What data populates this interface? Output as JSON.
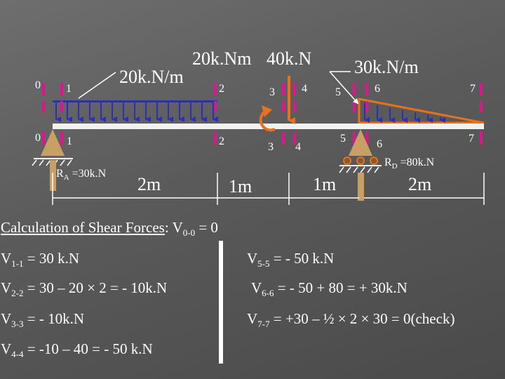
{
  "diagram": {
    "load_20knm": "20k.Nm",
    "load_40kn": "40k.N",
    "load_30knm": "30k.N/m",
    "load_20knperm": "20k.N/m",
    "section_top": [
      "0",
      "1",
      "2",
      "3",
      "4",
      "5",
      "6",
      "7"
    ],
    "section_bottom": [
      "0",
      "1",
      "2",
      "3",
      "4",
      "5",
      "6",
      "7"
    ],
    "reaction_a": "R",
    "reaction_a_sub": "A",
    "reaction_a_value": " =30k.N",
    "reaction_d": "R",
    "reaction_d_sub": "D",
    "reaction_d_value": " =80k.N",
    "span_1": "2m",
    "span_2": "1m",
    "span_3": "1m",
    "span_4": "2m",
    "colors": {
      "magenta": "#e0148c",
      "orange": "#e8711c",
      "tan": "#c8a064",
      "blue": "#2b2fb8",
      "beam": "#f2f2f2"
    }
  },
  "calc": {
    "title_underlined": "Calculation of Shear Forces",
    "title_rest": ": V",
    "title_sub": "0-0",
    "title_tail": " = 0",
    "left": [
      {
        "v": "V",
        "sub": "1-1",
        "rest": " = 30 k.N"
      },
      {
        "v": "V",
        "sub": "2-2",
        "rest": " = 30 – 20 × 2 = - 10k.N"
      },
      {
        "v": "V",
        "sub": "3-3",
        "rest": " = - 10k.N"
      },
      {
        "v": "V",
        "sub": "4-4",
        "rest": " = -10 – 40 = - 50 k.N"
      }
    ],
    "right": [
      {
        "v": "V",
        "sub": "5-5",
        "rest": " = - 50 k.N"
      },
      {
        "v": "V",
        "sub": "6-6",
        "rest": " = - 50 + 80 = + 30k.N"
      },
      {
        "v": "V",
        "sub": "7-7",
        "rest": " = +30 – ½ × 2 × 30 = 0(check)"
      }
    ]
  }
}
